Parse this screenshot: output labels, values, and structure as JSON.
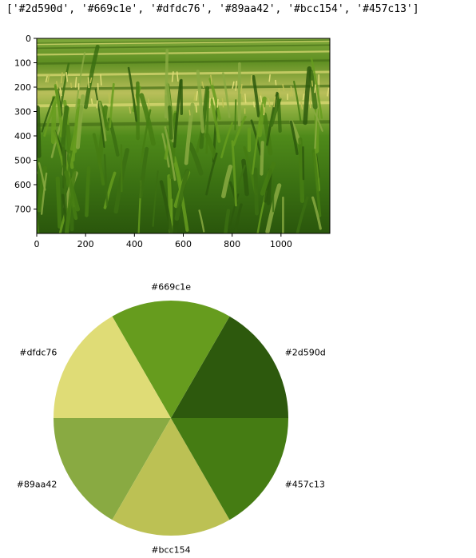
{
  "output_text": "['#2d590d', '#669c1e', '#dfdc76', '#89aa42', '#bcc154', '#457c13']",
  "colors": {
    "sky": "#6c9a2e",
    "field_dark": "#2d590d",
    "field_mid": "#457c13",
    "field_light": "#669c1e",
    "tassel": "#dfdc76",
    "tassel_dark": "#bcc154",
    "leaf_pale": "#89aa42"
  },
  "chart_data": [
    {
      "type": "image",
      "xlim": [
        0,
        1200
      ],
      "ylim": [
        800,
        0
      ],
      "x_ticks": [
        0,
        200,
        400,
        600,
        800,
        1000
      ],
      "y_ticks": [
        0,
        100,
        200,
        300,
        400,
        500,
        600,
        700
      ],
      "x_tick_labels": [
        "0",
        "200",
        "400",
        "600",
        "800",
        "1000"
      ],
      "y_tick_labels": [
        "0",
        "100",
        "200",
        "300",
        "400",
        "500",
        "600",
        "700"
      ]
    },
    {
      "type": "pie",
      "start_angle_deg": 0,
      "counterclock": true,
      "slices": [
        {
          "label": "#2d590d",
          "value": 1,
          "color": "#2d590d"
        },
        {
          "label": "#669c1e",
          "value": 1,
          "color": "#669c1e"
        },
        {
          "label": "#dfdc76",
          "value": 1,
          "color": "#dfdc76"
        },
        {
          "label": "#89aa42",
          "value": 1,
          "color": "#89aa42"
        },
        {
          "label": "#bcc154",
          "value": 1,
          "color": "#bcc154"
        },
        {
          "label": "#457c13",
          "value": 1,
          "color": "#457c13"
        }
      ]
    }
  ]
}
